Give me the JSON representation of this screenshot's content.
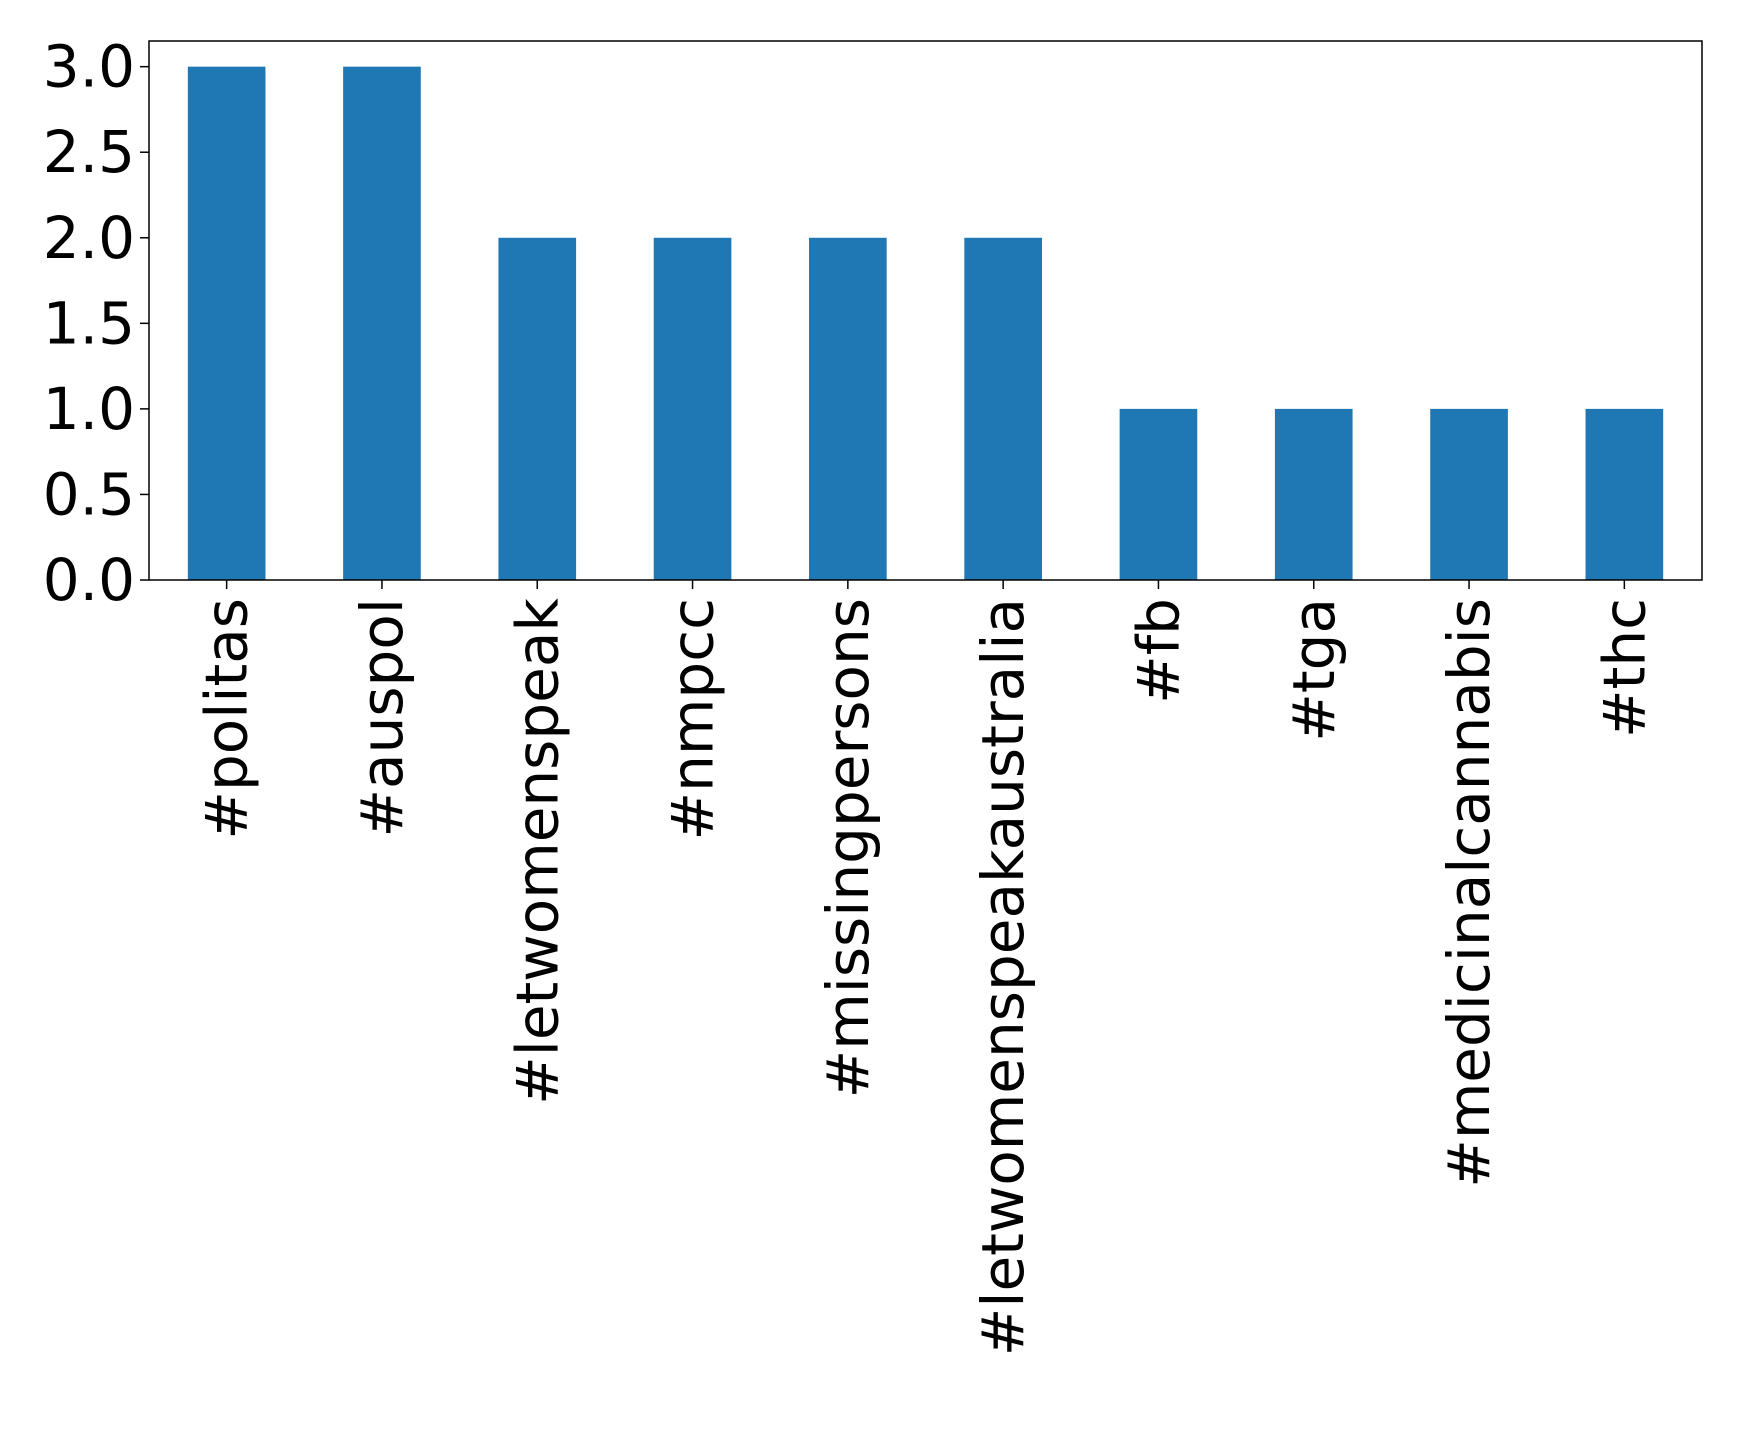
{
  "chart_data": {
    "type": "bar",
    "title": "",
    "xlabel": "",
    "ylabel": "",
    "categories": [
      "#politas",
      "#auspol",
      "#letwomenspeak",
      "#nmpcc",
      "#missingpersons",
      "#letwomenspeakaustralia",
      "#fb",
      "#tga",
      "#medicinalcannabis",
      "#thc"
    ],
    "values": [
      3,
      3,
      2,
      2,
      2,
      2,
      1,
      1,
      1,
      1
    ],
    "ylim": [
      0,
      3.15
    ],
    "yticks": [
      "0.0",
      "0.5",
      "1.0",
      "1.5",
      "2.0",
      "2.5",
      "3.0"
    ],
    "bar_color": "#1f77b4",
    "grid": false,
    "legend": "none"
  }
}
